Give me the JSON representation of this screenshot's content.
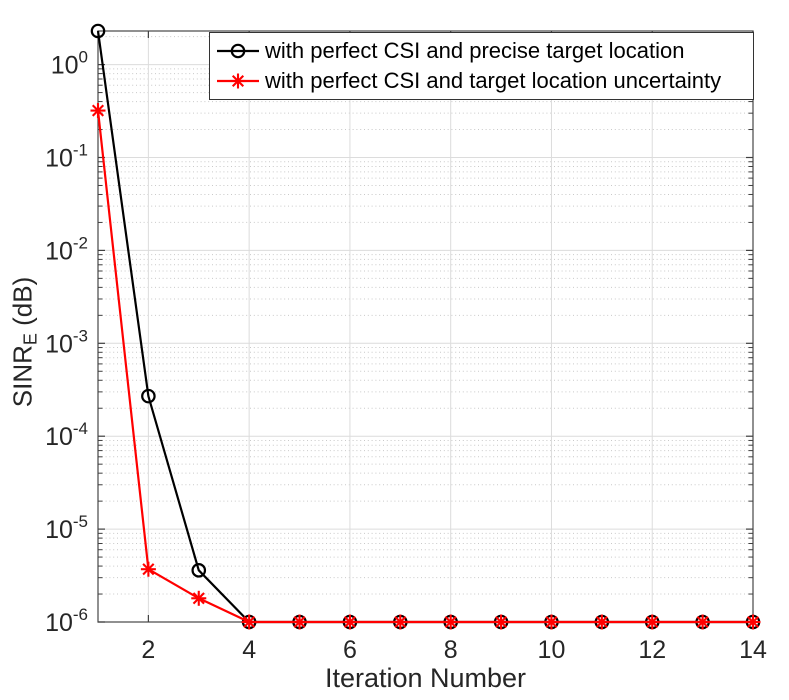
{
  "figure": {
    "background": "#ffffff",
    "axis_box_color": "#555555",
    "tick_color": "#404040",
    "label_color": "#262626",
    "grid_color": "#dcdcdc",
    "minor_grid_color": "#c9c9c9"
  },
  "chart_data": {
    "type": "line",
    "title": "",
    "xlabel": "Iteration Number",
    "ylabel": {
      "prefix": "SINR",
      "subscript": "E",
      "suffix": " (dB)"
    },
    "yscale": "log",
    "xlim": [
      1,
      14
    ],
    "ylim": [
      1e-06,
      2.3
    ],
    "x_ticks": [
      2,
      4,
      6,
      8,
      10,
      12,
      14
    ],
    "y_tick_exponents": [
      0,
      -1,
      -2,
      -3,
      -4,
      -5,
      -6
    ],
    "grid": "major and minor, horizontal minors dotted",
    "legend_position": "top-right-inside",
    "x": [
      1,
      2,
      3,
      4,
      5,
      6,
      7,
      8,
      9,
      10,
      11,
      12,
      13,
      14
    ],
    "series": [
      {
        "name": "with perfect CSI and precise target location",
        "color": "#000000",
        "marker": "circle",
        "values": [
          2.3,
          0.00027,
          3.6e-06,
          1e-06,
          1e-06,
          1e-06,
          1e-06,
          1e-06,
          1e-06,
          1e-06,
          1e-06,
          1e-06,
          1e-06,
          1e-06
        ]
      },
      {
        "name": "with perfect CSI and target location uncertainty",
        "color": "#ff0000",
        "marker": "asterisk",
        "values": [
          0.32,
          3.7e-06,
          1.8e-06,
          1e-06,
          1e-06,
          1e-06,
          1e-06,
          1e-06,
          1e-06,
          1e-06,
          1e-06,
          1e-06,
          1e-06,
          1e-06
        ]
      }
    ]
  }
}
